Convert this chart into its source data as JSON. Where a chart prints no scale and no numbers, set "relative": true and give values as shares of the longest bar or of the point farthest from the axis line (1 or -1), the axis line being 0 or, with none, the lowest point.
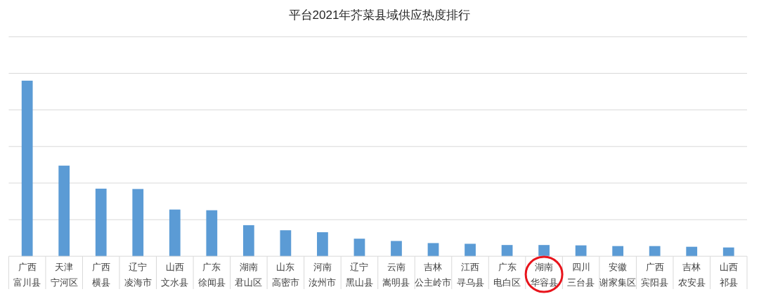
{
  "chart_data": {
    "type": "bar",
    "title": "平台2021年芥菜县域供应热度排行",
    "categories": [
      "广西富川县",
      "天津宁河区",
      "广西横县",
      "辽宁凌海市",
      "山西文水县",
      "广东徐闻县",
      "湖南君山区",
      "山东高密市",
      "河南汝州市",
      "辽宁黑山县",
      "云南嵩明县",
      "吉林公主岭市",
      "江西寻乌县",
      "广东电白区",
      "湖南华容县",
      "四川三台县",
      "安徽谢家集区",
      "广西宾阳县",
      "吉林农安县",
      "山西祁县"
    ],
    "values": [
      1,
      0.516,
      0.385,
      0.383,
      0.266,
      0.262,
      0.177,
      0.148,
      0.137,
      0.1,
      0.087,
      0.075,
      0.071,
      0.064,
      0.064,
      0.062,
      0.058,
      0.058,
      0.054,
      0.05
    ],
    "color": "#5b9bd5",
    "relative": true,
    "grid": true
  }
}
